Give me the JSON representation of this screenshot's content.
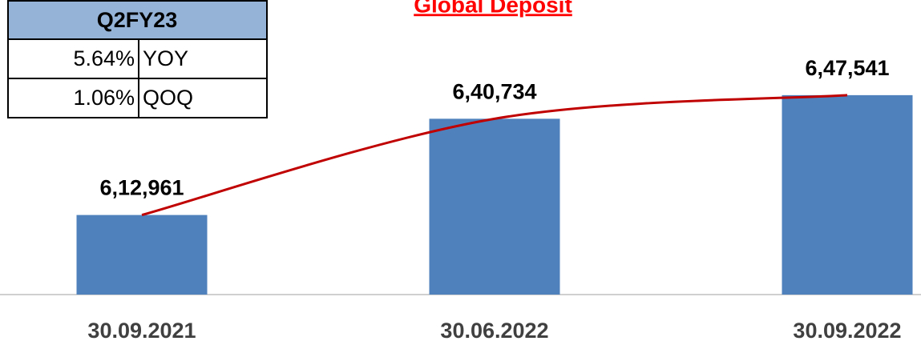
{
  "chart_data": {
    "type": "bar",
    "title": "Global Deposit",
    "categories": [
      "30.09.2021",
      "30.06.2022",
      "30.09.2022"
    ],
    "values": [
      612961,
      640734,
      647541
    ],
    "value_labels": [
      "6,12,961",
      "6,40,734",
      "6,47,541"
    ],
    "color": "#4f81bd",
    "trend_color": "#c00000",
    "ylim": [
      590000,
      675000
    ]
  },
  "table": {
    "header": "Q2FY23",
    "rows": [
      [
        "5.64%",
        "YOY"
      ],
      [
        "1.06%",
        "QOQ"
      ]
    ]
  }
}
